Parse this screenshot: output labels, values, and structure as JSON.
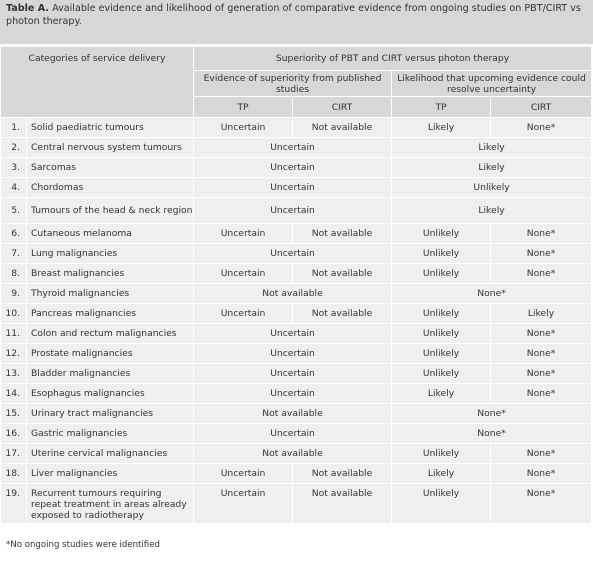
{
  "caption": {
    "label": "Table A.",
    "text": " Available evidence and likelihood of generation of comparative evidence from ongoing studies on PBT/CIRT vs photon therapy."
  },
  "header": {
    "categories": "Categories of service delivery",
    "superiority": "Superiority of PBT and CIRT versus photon therapy",
    "evidence": "Evidence of superiority from published studies",
    "likelihood": "Likelihood that upcoming evidence could resolve uncertainty",
    "tp": "TP",
    "cirt": "CIRT"
  },
  "rows": [
    {
      "num": "1.",
      "cat": "Solid paediatric tumours",
      "ev_tp": "Uncertain",
      "ev_cirt": "Not available",
      "lk_tp": "Likely",
      "lk_cirt": "None*"
    },
    {
      "num": "2.",
      "cat": "Central nervous system tumours",
      "ev": "Uncertain",
      "lk": "Likely"
    },
    {
      "num": "3.",
      "cat": "Sarcomas",
      "ev": "Uncertain",
      "lk": "Likely"
    },
    {
      "num": "4.",
      "cat": "Chordomas",
      "ev": "Uncertain",
      "lk": "Unlikely"
    },
    {
      "num": "5.",
      "cat": "Tumours of the head & neck region",
      "ev": "Uncertain",
      "lk": "Likely"
    },
    {
      "num": "6.",
      "cat": "Cutaneous melanoma",
      "ev_tp": "Uncertain",
      "ev_cirt": "Not available",
      "lk_tp": "Unlikely",
      "lk_cirt": "None*"
    },
    {
      "num": "7.",
      "cat": "Lung malignancies",
      "ev": "Uncertain",
      "lk_tp": "Unlikely",
      "lk_cirt": "None*"
    },
    {
      "num": "8.",
      "cat": "Breast malignancies",
      "ev_tp": "Uncertain",
      "ev_cirt": "Not available",
      "lk_tp": "Unlikely",
      "lk_cirt": "None*"
    },
    {
      "num": "9.",
      "cat": "Thyroid malignancies",
      "ev": "Not available",
      "lk": "None*"
    },
    {
      "num": "10.",
      "cat": "Pancreas malignancies",
      "ev_tp": "Uncertain",
      "ev_cirt": "Not available",
      "lk_tp": "Unlikely",
      "lk_cirt": "Likely"
    },
    {
      "num": "11.",
      "cat": "Colon and rectum malignancies",
      "ev": "Uncertain",
      "lk_tp": "Unlikely",
      "lk_cirt": "None*"
    },
    {
      "num": "12.",
      "cat": "Prostate malignancies",
      "ev": "Uncertain",
      "lk_tp": "Unlikely",
      "lk_cirt": "None*"
    },
    {
      "num": "13.",
      "cat": "Bladder malignancies",
      "ev": "Uncertain",
      "lk_tp": "Unlikely",
      "lk_cirt": "None*"
    },
    {
      "num": "14.",
      "cat": "Esophagus malignancies",
      "ev": "Uncertain",
      "lk_tp": "Likely",
      "lk_cirt": "None*"
    },
    {
      "num": "15.",
      "cat": "Urinary tract malignancies",
      "ev": "Not available",
      "lk": "None*"
    },
    {
      "num": "16.",
      "cat": "Gastric malignancies",
      "ev": "Uncertain",
      "lk": "None*"
    },
    {
      "num": "17.",
      "cat": "Uterine cervical malignancies",
      "ev": "Not available",
      "lk_tp": "Unlikely",
      "lk_cirt": "None*"
    },
    {
      "num": "18.",
      "cat": "Liver malignancies",
      "ev_tp": "Uncertain",
      "ev_cirt": "Not available",
      "lk_tp": "Likely",
      "lk_cirt": "None*"
    },
    {
      "num": "19.",
      "cat": "Recurrent tumours requiring repeat treatment in areas already exposed to radiotherapy",
      "ev_tp": "Uncertain",
      "ev_cirt": "Not available",
      "lk_tp": "Unlikely",
      "lk_cirt": "None*"
    }
  ],
  "footnote": "*No ongoing studies were identified"
}
